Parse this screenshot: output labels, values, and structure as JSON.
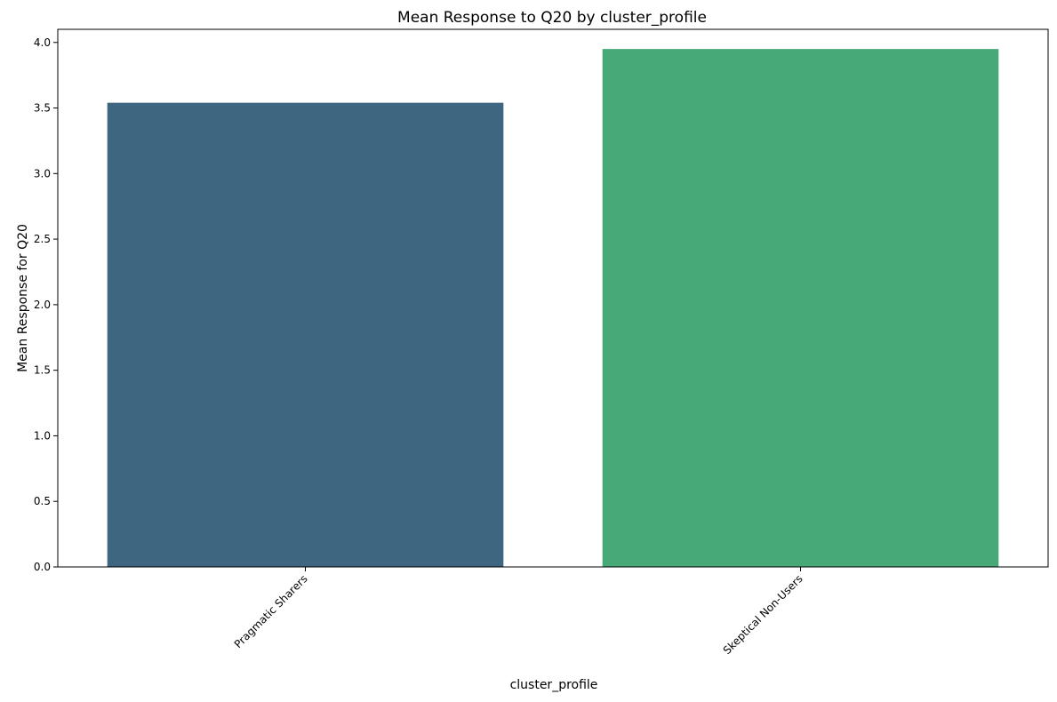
{
  "chart_data": {
    "type": "bar",
    "title": "Mean Response to Q20 by cluster_profile",
    "xlabel": "cluster_profile",
    "ylabel": "Mean Response for Q20",
    "categories": [
      "Pragmatic Sharers",
      "Skeptical Non-Users"
    ],
    "values": [
      3.54,
      3.95
    ],
    "colors": [
      "#3e6681",
      "#47a878"
    ],
    "ylim": [
      0,
      4.1
    ],
    "yticks": [
      "0.0",
      "0.5",
      "1.0",
      "1.5",
      "2.0",
      "2.5",
      "3.0",
      "3.5",
      "4.0"
    ],
    "grid": false,
    "legend": "none"
  }
}
